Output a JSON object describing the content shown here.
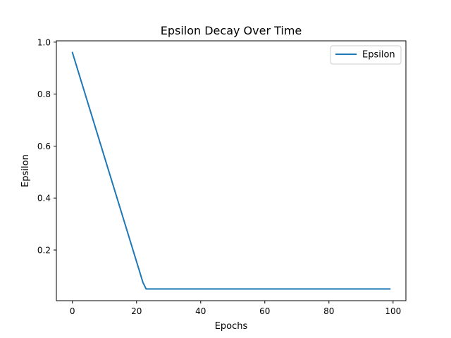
{
  "chart_data": {
    "type": "line",
    "title": "Epsilon Decay Over Time",
    "xlabel": "Epochs",
    "ylabel": "Epsilon",
    "xlim": [
      -5,
      104
    ],
    "ylim": [
      0.005,
      1.005
    ],
    "x_ticks": [
      0,
      20,
      40,
      60,
      80,
      100
    ],
    "y_ticks": [
      0.2,
      0.4,
      0.6,
      0.8,
      1.0
    ],
    "x_tick_labels": [
      "0",
      "20",
      "40",
      "60",
      "80",
      "100"
    ],
    "y_tick_labels": [
      "0.2",
      "0.4",
      "0.6",
      "0.8",
      "1.0"
    ],
    "grid": false,
    "legend": {
      "position": "top-right",
      "entries": [
        "Epsilon"
      ]
    },
    "series": [
      {
        "name": "Epsilon",
        "color": "#1f77b4",
        "x": [
          0,
          22,
          23,
          99
        ],
        "y": [
          0.96,
          0.075,
          0.05,
          0.05
        ]
      }
    ]
  }
}
